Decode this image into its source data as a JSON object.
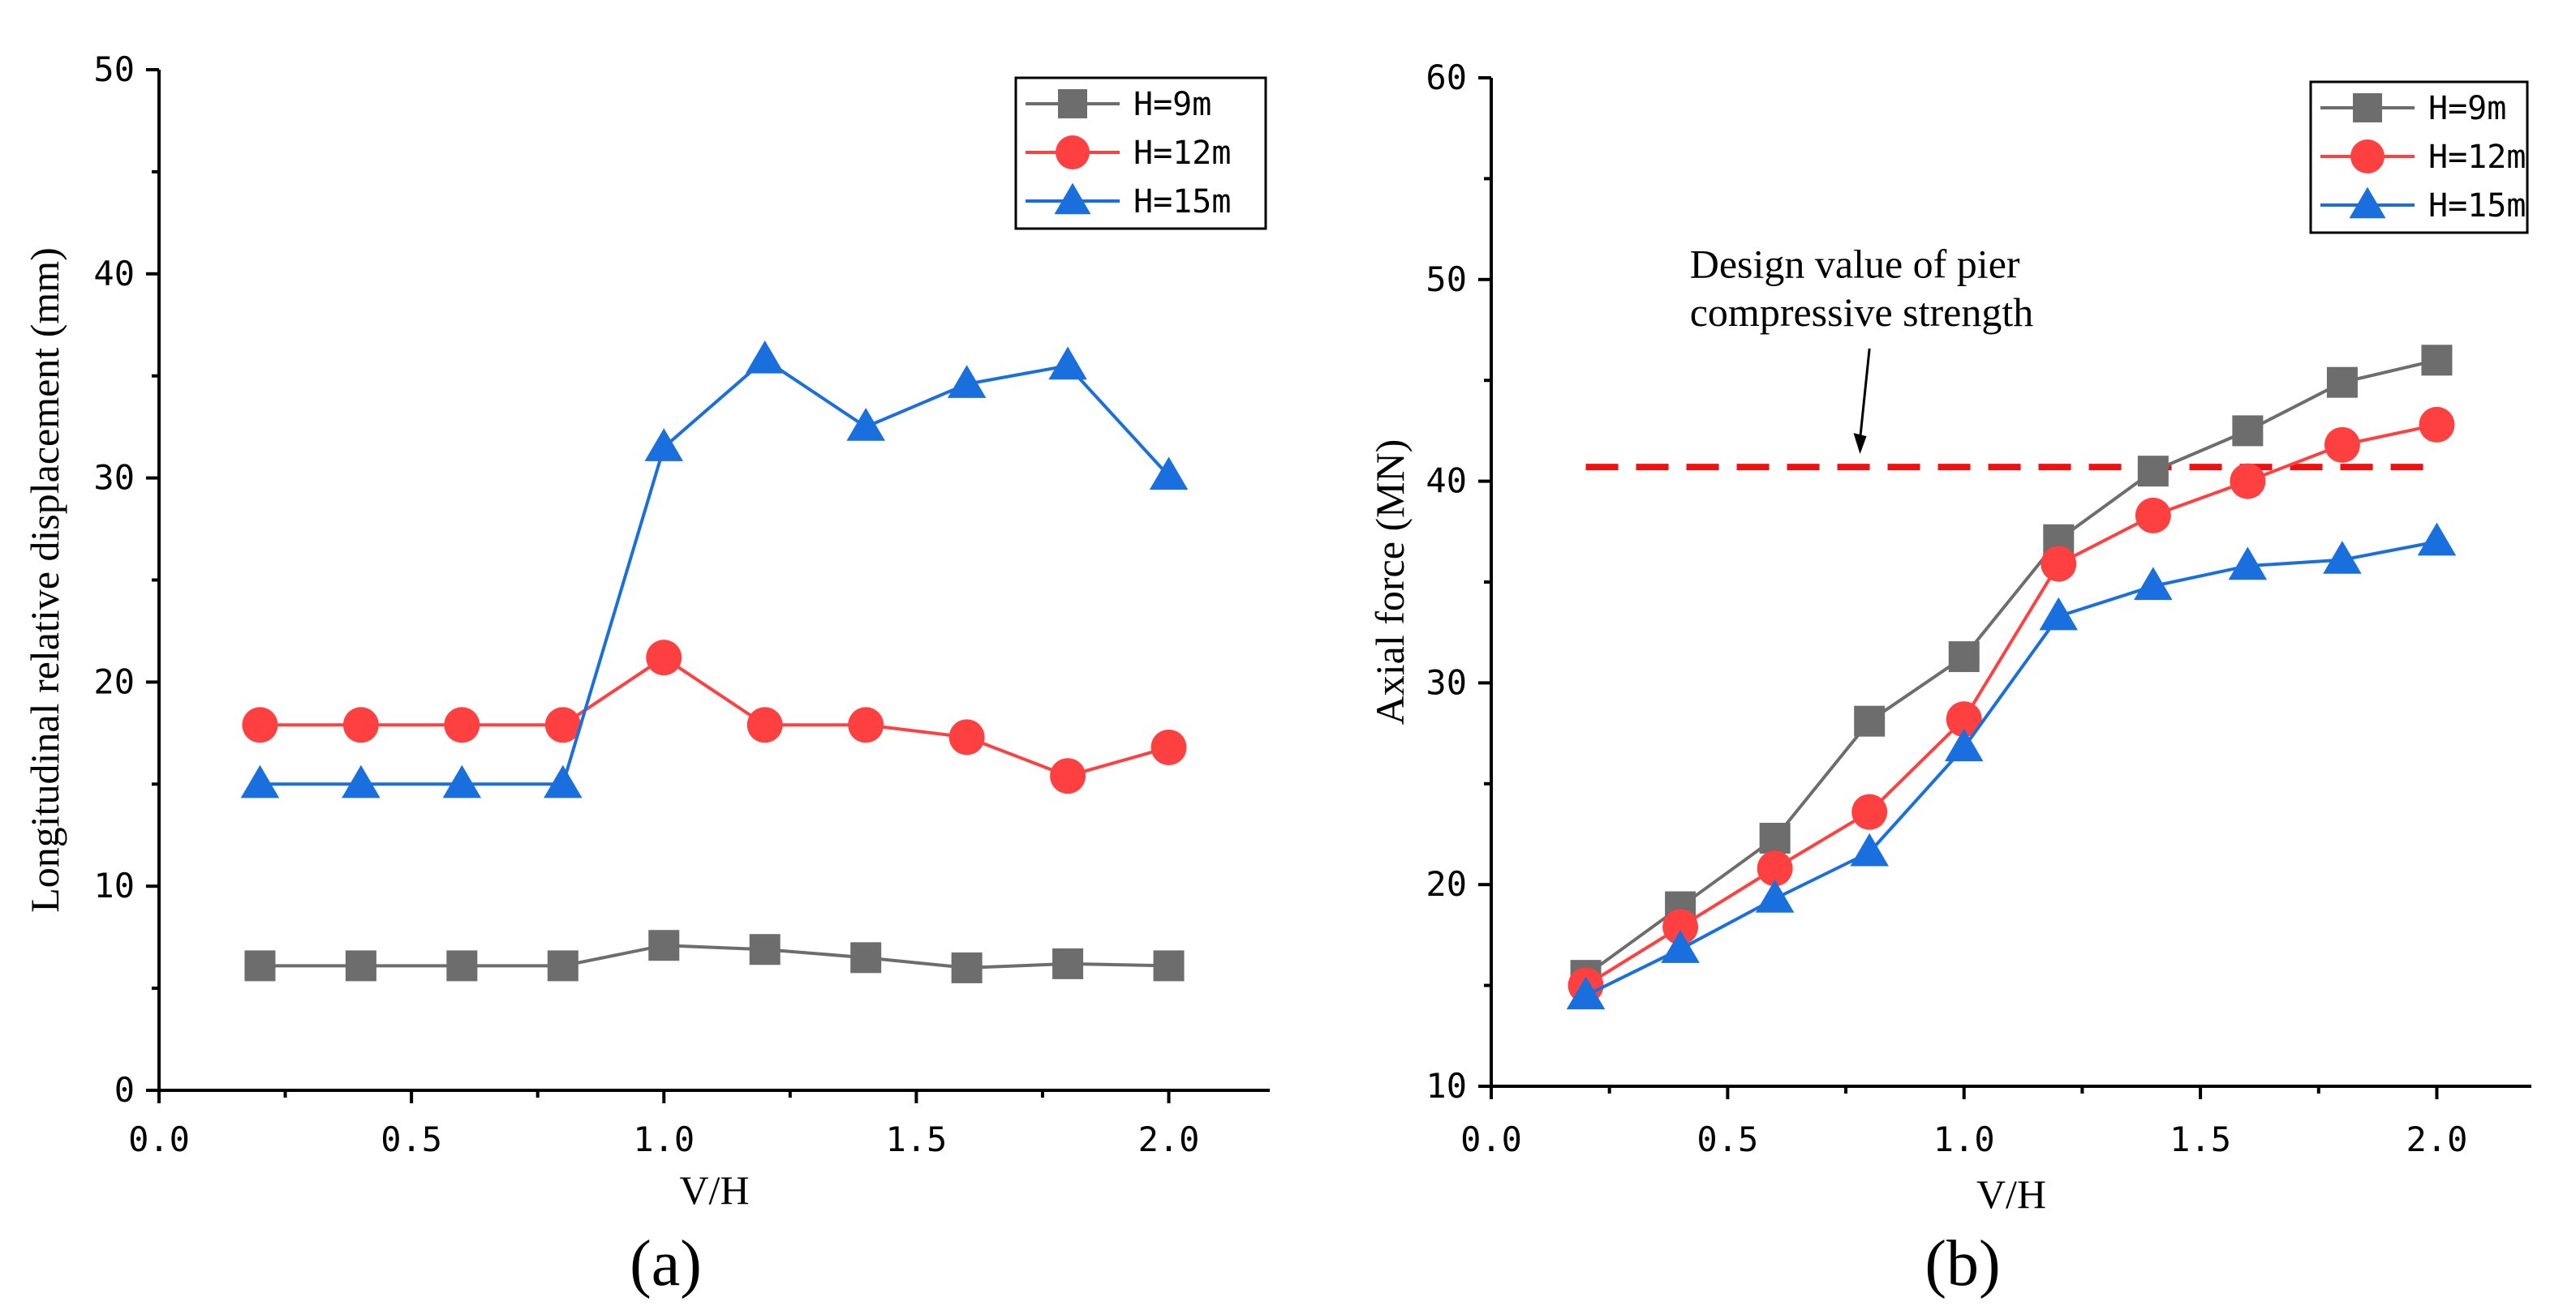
{
  "chart_data": [
    {
      "type": "line",
      "title": "",
      "panel_label": "(a)",
      "xlabel": "V/H",
      "ylabel": "Longitudinal relative displacement (mm)",
      "xlim": [
        0.0,
        2.2
      ],
      "ylim": [
        0,
        50
      ],
      "xticks": [
        0.0,
        0.5,
        1.0,
        1.5,
        2.0
      ],
      "xtick_labels": [
        "0.0",
        "0.5",
        "1.0",
        "1.5",
        "2.0"
      ],
      "yticks": [
        0,
        10,
        20,
        30,
        40,
        50
      ],
      "ytick_labels": [
        "0",
        "10",
        "20",
        "30",
        "40",
        "50"
      ],
      "grid": false,
      "legend_position": "top-right",
      "x": [
        0.2,
        0.4,
        0.6,
        0.8,
        1.0,
        1.2,
        1.4,
        1.6,
        1.8,
        2.0
      ],
      "series": [
        {
          "name": "H=9m",
          "marker": "square",
          "color": "#6d6d6d",
          "values": [
            6.1,
            6.1,
            6.1,
            6.1,
            7.1,
            6.9,
            6.5,
            6.0,
            6.2,
            6.1
          ]
        },
        {
          "name": "H=12m",
          "marker": "circle",
          "color": "#ff4040",
          "values": [
            17.9,
            17.9,
            17.9,
            17.9,
            21.2,
            17.9,
            17.9,
            17.3,
            15.4,
            16.8
          ]
        },
        {
          "name": "H=15m",
          "marker": "triangle",
          "color": "#1a6fdf",
          "values": [
            15.0,
            15.0,
            15.0,
            15.0,
            31.5,
            35.8,
            32.5,
            34.6,
            35.5,
            30.1
          ]
        }
      ]
    },
    {
      "type": "line",
      "title": "",
      "panel_label": "(b)",
      "xlabel": "V/H",
      "ylabel": "Axial force (MN)",
      "xlim": [
        0.0,
        2.2
      ],
      "ylim": [
        10,
        60
      ],
      "xticks": [
        0.0,
        0.5,
        1.0,
        1.5,
        2.0
      ],
      "xtick_labels": [
        "0.0",
        "0.5",
        "1.0",
        "1.5",
        "2.0"
      ],
      "yticks": [
        10,
        20,
        30,
        40,
        50,
        60
      ],
      "ytick_labels": [
        "10",
        "20",
        "30",
        "40",
        "50",
        "60"
      ],
      "grid": false,
      "legend_position": "top-right",
      "x": [
        0.2,
        0.4,
        0.6,
        0.8,
        1.0,
        1.2,
        1.4,
        1.6,
        1.8,
        2.0
      ],
      "series": [
        {
          "name": "H=9m",
          "marker": "square",
          "color": "#6d6d6d",
          "values": [
            15.5,
            18.9,
            22.3,
            28.1,
            31.3,
            37.1,
            40.5,
            42.5,
            44.9,
            46.0
          ]
        },
        {
          "name": "H=12m",
          "marker": "circle",
          "color": "#ff4040",
          "values": [
            15.0,
            17.9,
            20.8,
            23.6,
            28.2,
            35.9,
            38.3,
            40.0,
            41.8,
            42.8
          ]
        },
        {
          "name": "H=15m",
          "marker": "triangle",
          "color": "#1a6fdf",
          "values": [
            14.5,
            16.8,
            19.3,
            21.6,
            26.8,
            33.3,
            34.8,
            35.8,
            36.1,
            37.0
          ]
        }
      ],
      "reference_line": {
        "y": 40.7,
        "x_range": [
          0.2,
          2.0
        ],
        "color": "#ee1111",
        "style": "dashed"
      },
      "annotation": {
        "lines": [
          "Design value of pier",
          "compressive strength"
        ],
        "arrow_to": {
          "x": 0.78,
          "y": 40.7
        }
      }
    }
  ]
}
